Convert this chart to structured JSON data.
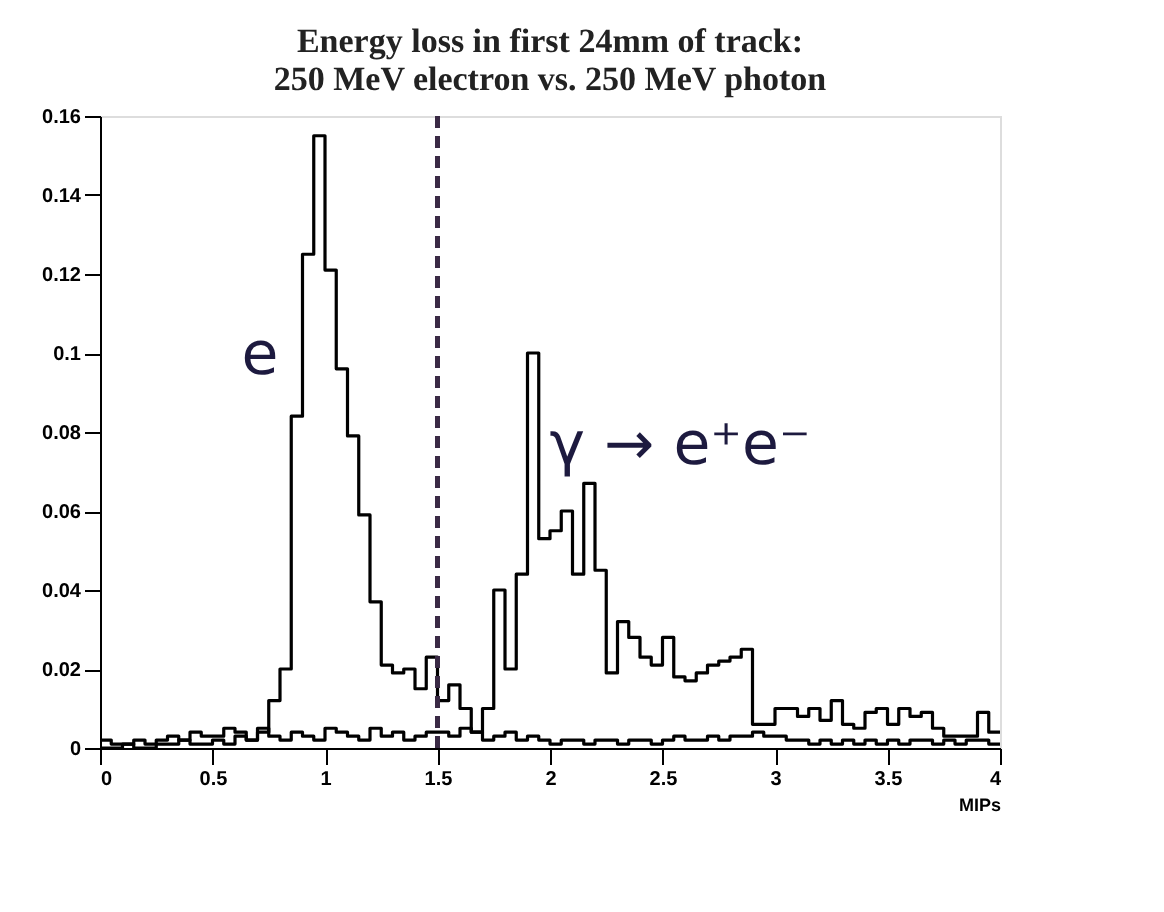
{
  "chart_data": {
    "type": "histogram",
    "title": [
      "Energy loss in first 24mm of track:",
      "250 MeV electron vs. 250 MeV photon"
    ],
    "xlabel": "MIPs",
    "bins": [
      0,
      0.05,
      0.1,
      0.15,
      0.2,
      0.25,
      0.3,
      0.35,
      0.4,
      0.45,
      0.5,
      0.55,
      0.6,
      0.65,
      0.7,
      0.75,
      0.8,
      0.85,
      0.9,
      0.95,
      1,
      1.05,
      1.1,
      1.15,
      1.2,
      1.25,
      1.3,
      1.35,
      1.4,
      1.45,
      1.5,
      1.55,
      1.6,
      1.65,
      1.7,
      1.75,
      1.8,
      1.85,
      1.9,
      1.95,
      2,
      2.05,
      2.1,
      2.15,
      2.2,
      2.25,
      2.3,
      2.35,
      2.4,
      2.45,
      2.5,
      2.55,
      2.6,
      2.65,
      2.7,
      2.75,
      2.8,
      2.85,
      2.9,
      2.95,
      3,
      3.05,
      3.1,
      3.15,
      3.2,
      3.25,
      3.3,
      3.35,
      3.4,
      3.45,
      3.5,
      3.55,
      3.6,
      3.65,
      3.7,
      3.75,
      3.8,
      3.85,
      3.9,
      3.95,
      4
    ],
    "series": [
      {
        "color": "#000000",
        "values": [
          0,
          0,
          0.001,
          0,
          0,
          0.001,
          0.001,
          0.002,
          0.001,
          0.001,
          0.002,
          0.001,
          0.003,
          0.002,
          0.004,
          0.012,
          0.02,
          0.084,
          0.125,
          0.155,
          0.121,
          0.096,
          0.079,
          0.059,
          0.037,
          0.021,
          0.019,
          0.02,
          0.015,
          0.023,
          0.012,
          0.016,
          0.01,
          0.004,
          0.002,
          0.003,
          0.004,
          0.002,
          0.003,
          0.002,
          0.001,
          0.002,
          0.002,
          0.001,
          0.002,
          0.002,
          0.001,
          0.002,
          0.002,
          0.001,
          0.002,
          0.003,
          0.002,
          0.002,
          0.003,
          0.002,
          0.003,
          0.003,
          0.004,
          0.003,
          0.003,
          0.002,
          0.002,
          0.001,
          0.002,
          0.001,
          0.002,
          0.001,
          0.002,
          0.001,
          0.002,
          0.001,
          0.002,
          0.002,
          0.001,
          0.002,
          0.001,
          0.002,
          0.002,
          0.001
        ]
      },
      {
        "color": "#000000",
        "values": [
          0.002,
          0.001,
          0.001,
          0.002,
          0.001,
          0.002,
          0.003,
          0.002,
          0.004,
          0.003,
          0.003,
          0.005,
          0.004,
          0.002,
          0.005,
          0.003,
          0.002,
          0.004,
          0.003,
          0.002,
          0.005,
          0.004,
          0.003,
          0.002,
          0.005,
          0.003,
          0.004,
          0.002,
          0.003,
          0.004,
          0.004,
          0.003,
          0.005,
          0.004,
          0.01,
          0.04,
          0.02,
          0.044,
          0.1,
          0.053,
          0.055,
          0.06,
          0.044,
          0.067,
          0.045,
          0.019,
          0.032,
          0.028,
          0.023,
          0.021,
          0.028,
          0.018,
          0.017,
          0.019,
          0.021,
          0.022,
          0.023,
          0.025,
          0.006,
          0.006,
          0.01,
          0.01,
          0.008,
          0.01,
          0.007,
          0.012,
          0.006,
          0.005,
          0.009,
          0.01,
          0.006,
          0.01,
          0.008,
          0.009,
          0.005,
          0.003,
          0.003,
          0.003,
          0.009,
          0.004
        ]
      }
    ],
    "xlim": [
      0,
      4
    ],
    "xticks": [
      0,
      0.5,
      1,
      1.5,
      2,
      2.5,
      3,
      3.5,
      4
    ],
    "ylim": [
      0,
      0.16
    ],
    "yticks": [
      0,
      0.02,
      0.04,
      0.06,
      0.08,
      0.1,
      0.12,
      0.14,
      0.16
    ],
    "ref_lines": [
      {
        "axis": "x",
        "value": 1.5,
        "color": "#3a2a45",
        "line_style": "dashed"
      }
    ],
    "annotations": [
      "e",
      "γ → e⁺e⁻"
    ],
    "grid": false
  }
}
